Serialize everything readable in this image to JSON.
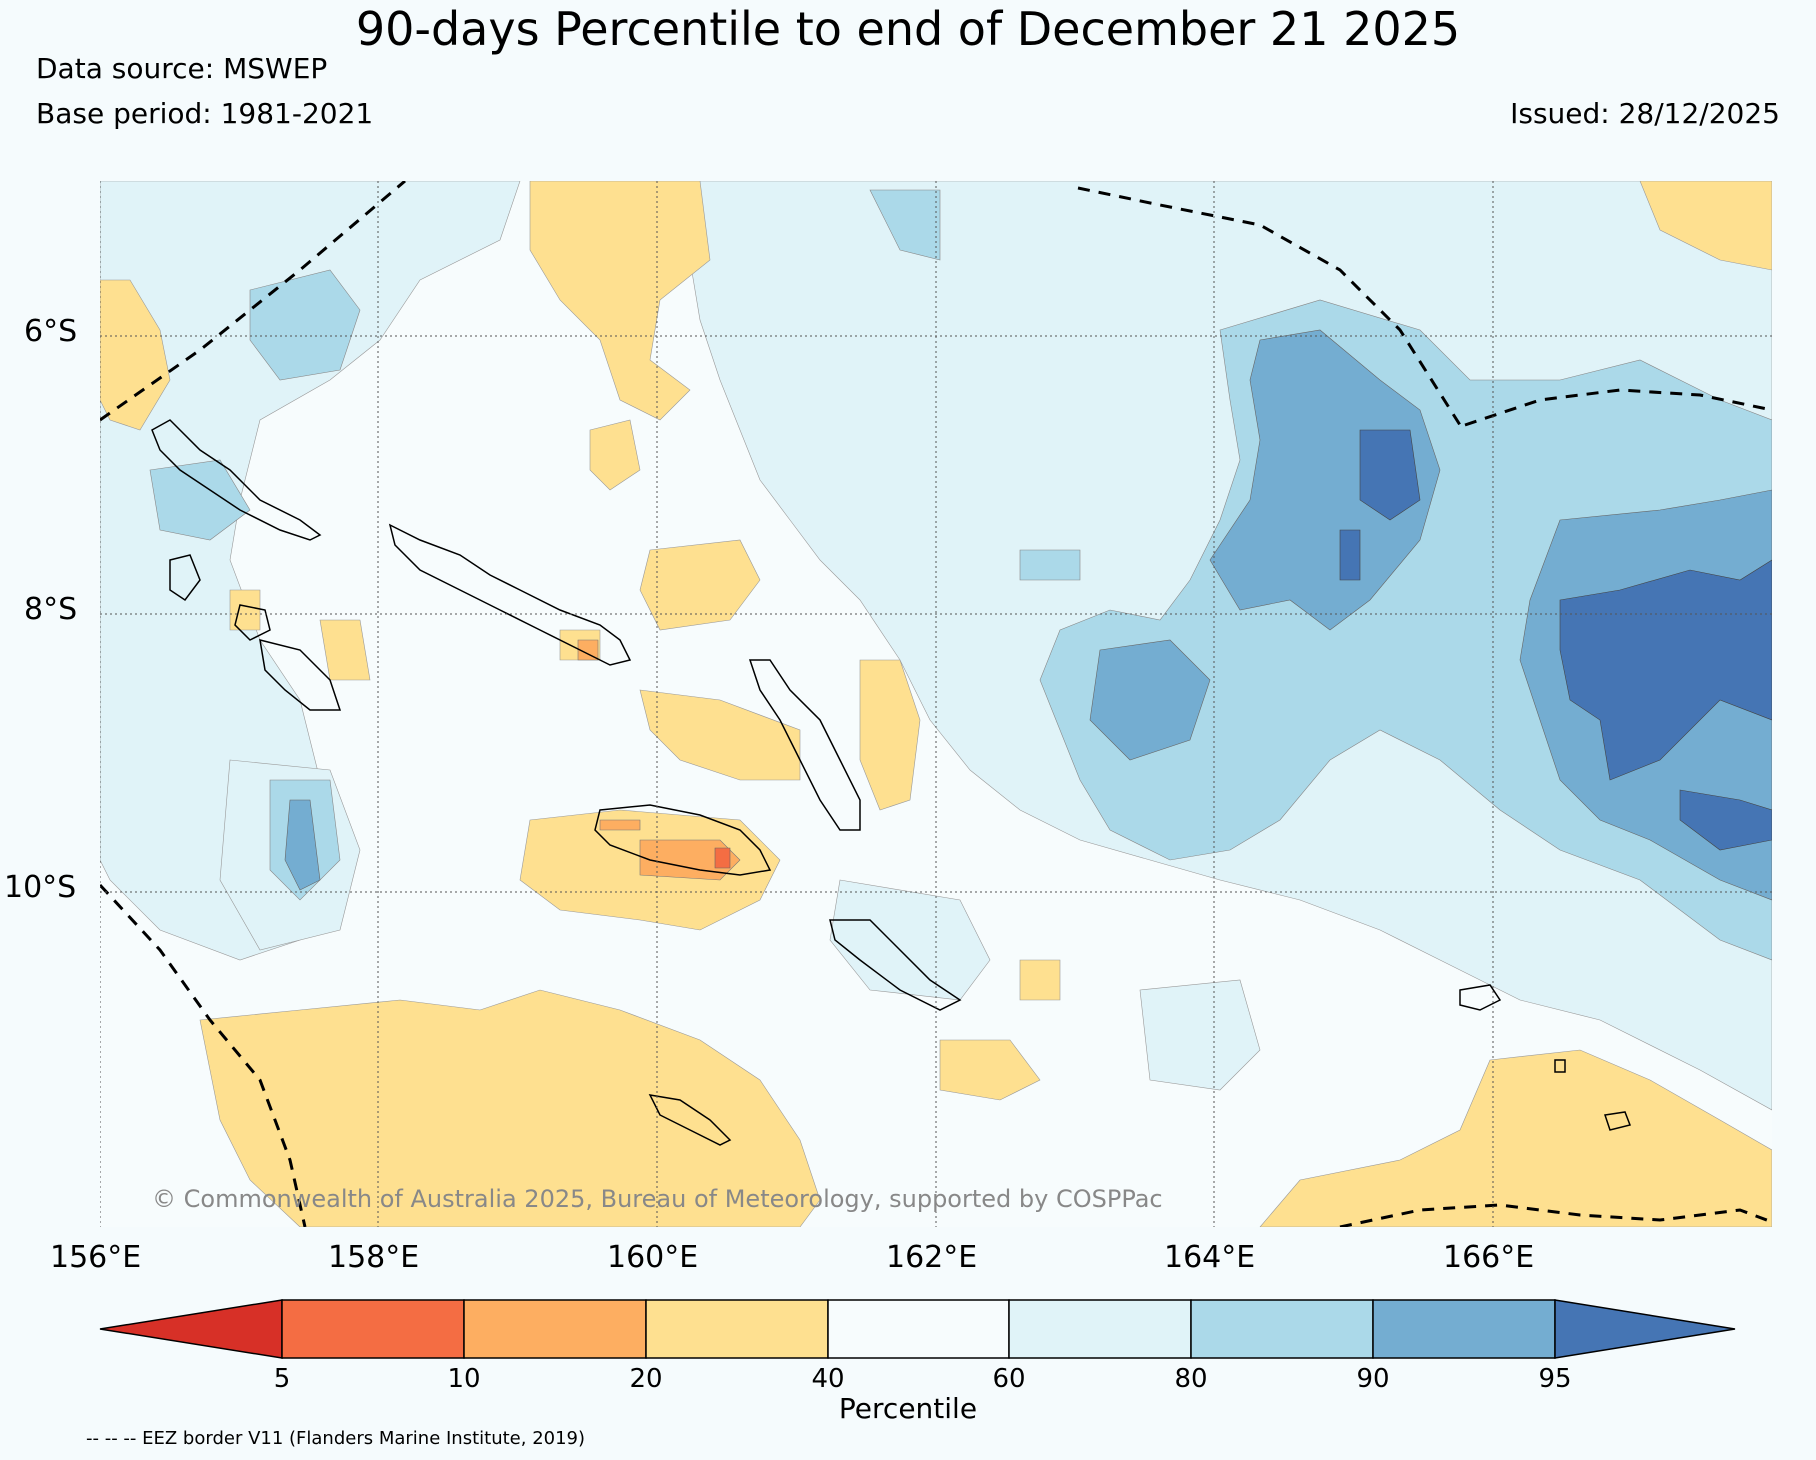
{
  "header": {
    "title": "90-days Percentile to end of December 21 2025",
    "data_source": "Data source: MSWEP",
    "base_period": "Base period: 1981-2021",
    "issued": "Issued: 28/12/2025"
  },
  "map": {
    "lat_labels": [
      "6°S",
      "8°S",
      "10°S"
    ],
    "lon_labels": [
      "156°E",
      "158°E",
      "160°E",
      "162°E",
      "164°E",
      "166°E"
    ],
    "copyright": "© Commonwealth of Australia 2025, Bureau of Meteorology, supported by COSPPac",
    "colors": {
      "p_below5": "#d73027",
      "p5_10": "#f46d43",
      "p10_20": "#fdae61",
      "p20_40": "#fee090",
      "p40_60": "#f7fcfd",
      "p60_80": "#e0f3f8",
      "p80_90": "#abd9e9",
      "p90_95": "#74add1",
      "p_above95": "#4575b4"
    }
  },
  "colorbar": {
    "label": "Percentile",
    "ticks": [
      "5",
      "10",
      "20",
      "40",
      "60",
      "80",
      "90",
      "95"
    ]
  },
  "footer": {
    "eez_note": "-- -- -- EEZ border V11 (Flanders Marine Institute, 2019)"
  }
}
